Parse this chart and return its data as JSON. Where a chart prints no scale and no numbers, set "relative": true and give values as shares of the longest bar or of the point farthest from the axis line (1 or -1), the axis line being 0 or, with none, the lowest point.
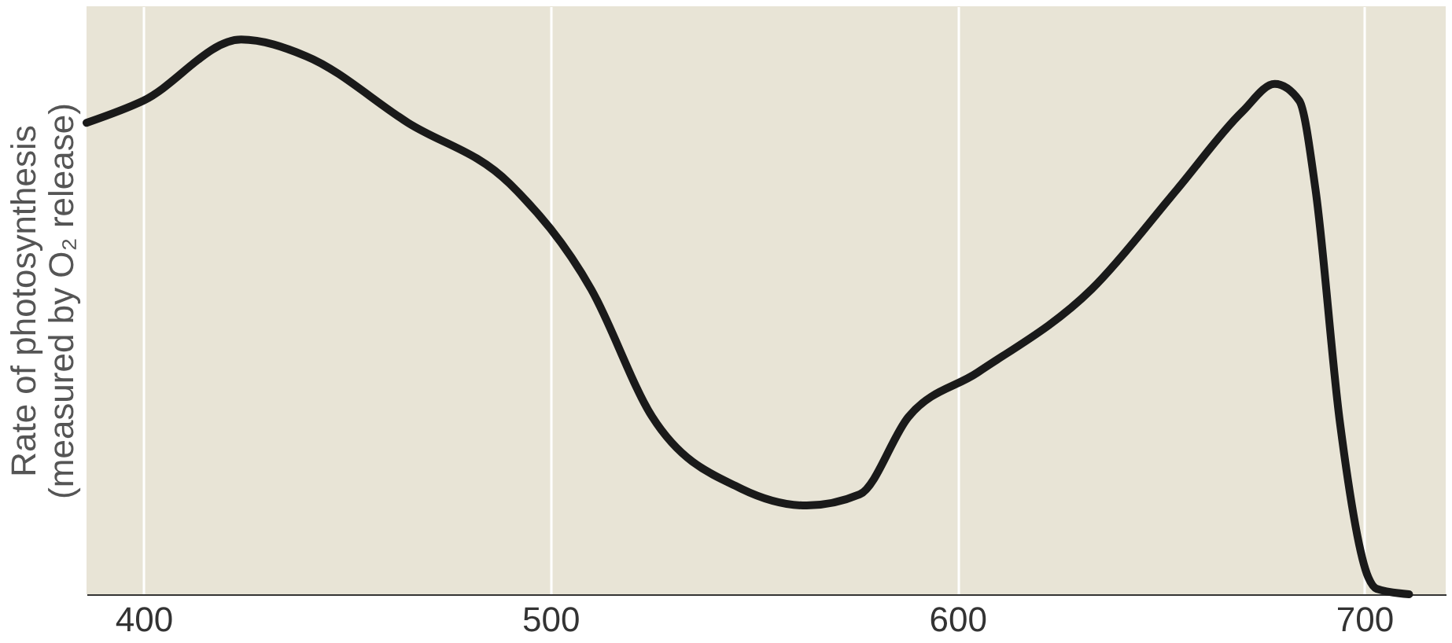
{
  "chart_data": {
    "type": "line",
    "relative": true,
    "ylabel": "Rate of photosynthesis\n(measured by O₂ release)",
    "x": [
      386,
      400,
      424,
      440,
      465,
      490,
      510,
      525,
      547,
      563,
      576,
      588,
      605,
      633,
      654,
      670,
      678,
      684,
      688,
      694,
      701,
      703,
      711
    ],
    "series": [
      {
        "color": "#1a1a1a",
        "values": [
          0.85,
          0.89,
          1.0,
          0.97,
          0.85,
          0.74,
          0.55,
          0.32,
          0.19,
          0.16,
          0.18,
          0.32,
          0.4,
          0.55,
          0.73,
          0.87,
          0.92,
          0.89,
          0.73,
          0.31,
          0.03,
          0.01,
          0
        ]
      }
    ],
    "xlim": [
      386,
      720
    ],
    "xticks": [
      400,
      500,
      600,
      700
    ],
    "grid": "x",
    "line_style": "solid",
    "marker": "none"
  }
}
